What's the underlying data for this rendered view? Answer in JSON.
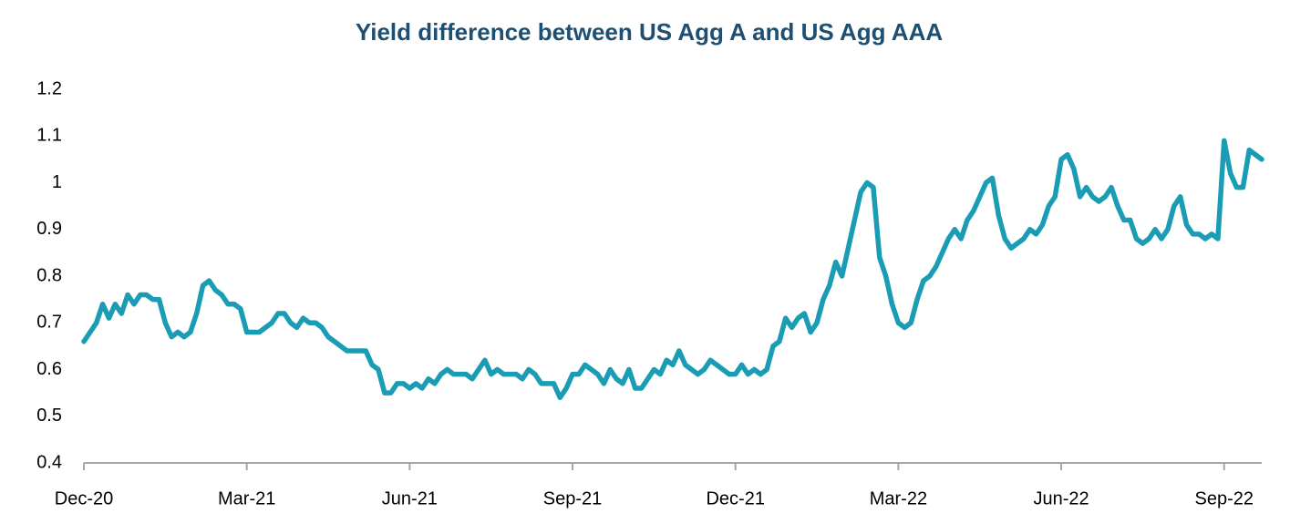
{
  "chart_data": {
    "type": "line",
    "title": "Yield difference between US Agg A and US Agg AAA",
    "categories": [
      "Dec-20",
      null,
      null,
      null,
      null,
      null,
      null,
      null,
      null,
      null,
      null,
      null,
      null,
      null,
      null,
      null,
      null,
      null,
      null,
      null,
      null,
      null,
      null,
      null,
      null,
      null,
      "Mar-21",
      null,
      null,
      null,
      null,
      null,
      null,
      null,
      null,
      null,
      null,
      null,
      null,
      null,
      null,
      null,
      null,
      null,
      null,
      null,
      null,
      null,
      null,
      null,
      null,
      null,
      "Jun-21",
      null,
      null,
      null,
      null,
      null,
      null,
      null,
      null,
      null,
      null,
      null,
      null,
      null,
      null,
      null,
      null,
      null,
      null,
      null,
      null,
      null,
      null,
      null,
      null,
      null,
      "Sep-21",
      null,
      null,
      null,
      null,
      null,
      null,
      null,
      null,
      null,
      null,
      null,
      null,
      null,
      null,
      null,
      null,
      null,
      null,
      null,
      null,
      null,
      null,
      null,
      null,
      null,
      "Dec-21",
      null,
      null,
      null,
      null,
      null,
      null,
      null,
      null,
      null,
      null,
      null,
      null,
      null,
      null,
      null,
      null,
      null,
      null,
      null,
      null,
      null,
      null,
      null,
      null,
      null,
      "Mar-22",
      null,
      null,
      null,
      null,
      null,
      null,
      null,
      null,
      null,
      null,
      null,
      null,
      null,
      null,
      null,
      null,
      null,
      null,
      null,
      null,
      null,
      null,
      null,
      null,
      null,
      "Jun-22",
      null,
      null,
      null,
      null,
      null,
      null,
      null,
      null,
      null,
      null,
      null,
      null,
      null,
      null,
      null,
      null,
      null,
      null,
      null,
      null,
      null,
      null,
      null,
      null,
      null,
      "Sep-22",
      null,
      null,
      null,
      null,
      null,
      null
    ],
    "values": [
      0.66,
      0.68,
      0.7,
      0.74,
      0.71,
      0.74,
      0.72,
      0.76,
      0.74,
      0.76,
      0.76,
      0.75,
      0.75,
      0.7,
      0.67,
      0.68,
      0.67,
      0.68,
      0.72,
      0.78,
      0.79,
      0.77,
      0.76,
      0.74,
      0.74,
      0.73,
      0.68,
      0.68,
      0.68,
      0.69,
      0.7,
      0.72,
      0.72,
      0.7,
      0.69,
      0.71,
      0.7,
      0.7,
      0.69,
      0.67,
      0.66,
      0.65,
      0.64,
      0.64,
      0.64,
      0.64,
      0.61,
      0.6,
      0.55,
      0.55,
      0.57,
      0.57,
      0.56,
      0.57,
      0.56,
      0.58,
      0.57,
      0.59,
      0.6,
      0.59,
      0.59,
      0.59,
      0.58,
      0.6,
      0.62,
      0.59,
      0.6,
      0.59,
      0.59,
      0.59,
      0.58,
      0.6,
      0.59,
      0.57,
      0.57,
      0.57,
      0.54,
      0.56,
      0.59,
      0.59,
      0.61,
      0.6,
      0.59,
      0.57,
      0.6,
      0.58,
      0.57,
      0.6,
      0.56,
      0.56,
      0.58,
      0.6,
      0.59,
      0.62,
      0.61,
      0.64,
      0.61,
      0.6,
      0.59,
      0.6,
      0.62,
      0.61,
      0.6,
      0.59,
      0.59,
      0.61,
      0.59,
      0.6,
      0.59,
      0.6,
      0.65,
      0.66,
      0.71,
      0.69,
      0.71,
      0.72,
      0.68,
      0.7,
      0.75,
      0.78,
      0.83,
      0.8,
      0.86,
      0.92,
      0.98,
      1.0,
      0.99,
      0.84,
      0.8,
      0.74,
      0.7,
      0.69,
      0.7,
      0.75,
      0.79,
      0.8,
      0.82,
      0.85,
      0.88,
      0.9,
      0.88,
      0.92,
      0.94,
      0.97,
      1.0,
      1.01,
      0.93,
      0.88,
      0.86,
      0.87,
      0.88,
      0.9,
      0.89,
      0.91,
      0.95,
      0.97,
      1.05,
      1.06,
      1.03,
      0.97,
      0.99,
      0.97,
      0.96,
      0.97,
      0.99,
      0.95,
      0.92,
      0.92,
      0.88,
      0.87,
      0.88,
      0.9,
      0.88,
      0.9,
      0.95,
      0.97,
      0.91,
      0.89,
      0.89,
      0.88,
      0.89,
      0.88,
      1.09,
      1.02,
      0.99,
      0.99,
      1.07,
      1.06,
      1.05
    ],
    "color": "#1a9db4",
    "ylim": [
      0.4,
      1.2
    ],
    "yticks": [
      0.4,
      0.5,
      0.6,
      0.7,
      0.8,
      0.9,
      1,
      1.1,
      1.2
    ],
    "grid": false
  }
}
